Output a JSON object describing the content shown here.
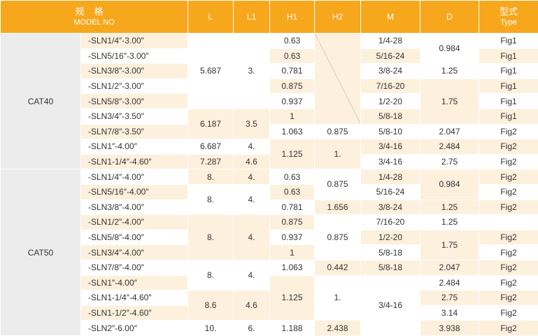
{
  "header": {
    "model_zh": "规格",
    "model_en": "MODEL NO",
    "L": "L",
    "L1": "L1",
    "H1": "H1",
    "H2": "H2",
    "M": "M",
    "D": "D",
    "type_zh": "型式",
    "type_en": "Type"
  },
  "groups": {
    "cat40": "CAT40",
    "cat50": "CAT50"
  },
  "rows": [
    {
      "model": "-SLN1/4″-3.00″",
      "L": "5.687",
      "L1": "3.",
      "H1": "0.63",
      "H2": "",
      "M": "1/4-28",
      "D": "0.984",
      "type": "Fig1"
    },
    {
      "model": "-SLN5/16″-3.00″",
      "L": "",
      "L1": "",
      "H1": "0.63",
      "H2": "",
      "M": "5/16-24",
      "D": "",
      "type": "Fig1"
    },
    {
      "model": "-SLN3/8″-3.00″",
      "L": "",
      "L1": "",
      "H1": "0.781",
      "H2": "",
      "M": "3/8-24",
      "D": "1.25",
      "type": "Fig1"
    },
    {
      "model": "-SLN1/2″-3.00″",
      "L": "",
      "L1": "",
      "H1": "0.875",
      "H2": "",
      "M": "7/16-20",
      "D": "1.75",
      "type": "Fig1"
    },
    {
      "model": "-SLN5/8″-3.00″",
      "L": "",
      "L1": "",
      "H1": "0.937",
      "H2": "",
      "M": "1/2-20",
      "D": "",
      "type": "Fig1"
    },
    {
      "model": "-SLN3/4″-3.50″",
      "L": "6.187",
      "L1": "3.5",
      "H1": "1",
      "H2": "",
      "M": "5/8-18",
      "D": "",
      "type": "Fig1"
    },
    {
      "model": "-SLN7/8″-3.50″",
      "L": "",
      "L1": "",
      "H1": "1.063",
      "H2": "0.875",
      "M": "5/8-10",
      "D": "2.047",
      "type": "Fig2"
    },
    {
      "model": "-SLN1″-4.00″",
      "L": "6.687",
      "L1": "4.",
      "H1": "1.125",
      "H2": "1.",
      "M": "3/4-16",
      "D": "2.484",
      "type": "Fig2"
    },
    {
      "model": "-SLN1-1/4″-4.60″",
      "L": "7.287",
      "L1": "4.6",
      "H1": "",
      "H2": "",
      "M": "3/4-16",
      "D": "2.75",
      "type": "Fig2"
    },
    {
      "model": "-SLN1/4″-4.00″",
      "L": "8.",
      "L1": "4.",
      "H1": "0.63",
      "H2": "0.875",
      "M": "1/4-28",
      "D": "0.984",
      "type": "Fig2"
    },
    {
      "model": "-SLN5/16″-4.00″",
      "L": "8.",
      "L1": "4.",
      "H1": "0.63",
      "H2": "",
      "M": "5/16-24",
      "D": "",
      "type": "Fig2"
    },
    {
      "model": "-SLN3/8″-4.00″",
      "L": "",
      "L1": "",
      "H1": "0.781",
      "H2": "1.656",
      "M": "3/8-24",
      "D": "1.25",
      "type": "Fig2"
    },
    {
      "model": "-SLN1/2″-4.00″",
      "L": "8.",
      "L1": "4.",
      "H1": "0.875",
      "H2": "0.875",
      "M": "7/16-20",
      "D": "1.25",
      "type": ""
    },
    {
      "model": "-SLN5/8″-4.00″",
      "L": "",
      "L1": "",
      "H1": "0.937",
      "H2": "",
      "M": "1/2-20",
      "D": "1.75",
      "type": "Fig2"
    },
    {
      "model": "-SLN3/4″-4.00″",
      "L": "",
      "L1": "",
      "H1": "1",
      "H2": "",
      "M": "5/8-18",
      "D": "",
      "type": "Fig2"
    },
    {
      "model": "-SLN7/8″-4.00″",
      "L": "8.",
      "L1": "4.",
      "H1": "1.063",
      "H2": "0.442",
      "M": "5/8-18",
      "D": "2.047",
      "type": "Fig2"
    },
    {
      "model": "-SLN1″-4.00″",
      "L": "",
      "L1": "",
      "H1": "1.125",
      "H2": "1.",
      "M": "3/4-16",
      "D": "2.484",
      "type": "Fig2"
    },
    {
      "model": "-SLN1-1/4″-4.60″",
      "L": "8.6",
      "L1": "4.6",
      "H1": "",
      "H2": "",
      "M": "",
      "D": "2.75",
      "type": "Fig2"
    },
    {
      "model": "-SLN1-1/2″-4.60″",
      "L": "",
      "L1": "",
      "H1": "",
      "H2": "",
      "M": "",
      "D": "3.14",
      "type": "Fig2"
    },
    {
      "model": "-SLN2″-6.00″",
      "L": "10.",
      "L1": "6.",
      "H1": "1.188",
      "H2": "2.438",
      "M": "",
      "D": "3.938",
      "type": "Fig2"
    }
  ]
}
